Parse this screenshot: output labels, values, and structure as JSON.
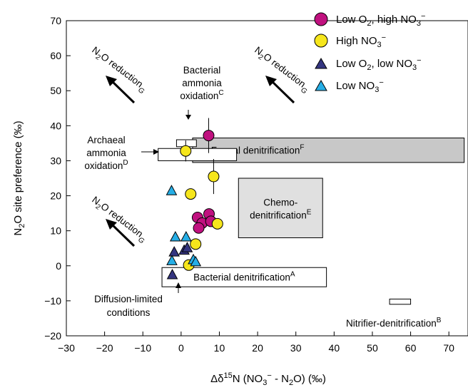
{
  "chart_data": {
    "type": "scatter",
    "xlabel_parts": {
      "pre": "Δδ",
      "sup1": "15",
      "mid": "N (NO",
      "sub1": "3",
      "sup2": "−",
      "post": " - N",
      "sub2": "2",
      "end": "O) (‰)"
    },
    "ylabel_parts": {
      "pre": "N",
      "sub": "2",
      "post": "O site preference (‰)"
    },
    "xlim": [
      -30,
      75
    ],
    "ylim": [
      -20,
      70
    ],
    "xticks": [
      -30,
      -20,
      -10,
      0,
      10,
      20,
      30,
      40,
      50,
      60,
      70
    ],
    "yticks": [
      -20,
      -10,
      0,
      10,
      20,
      30,
      40,
      50,
      60,
      70
    ],
    "xtick_labels": [
      "−30",
      "−20",
      "−10",
      "0",
      "10",
      "20",
      "30",
      "40",
      "50",
      "60",
      "70"
    ],
    "ytick_labels": [
      "−20",
      "−10",
      "0",
      "10",
      "20",
      "30",
      "40",
      "50",
      "60",
      "70"
    ],
    "grid": false,
    "legend_position": "top-right",
    "series": [
      {
        "name": "Low O2, high NO3−",
        "legend": {
          "a": "Low O",
          "b": "2",
          "c": ", high NO",
          "d": "3",
          "e": "−"
        },
        "marker": "circle",
        "color": "#c0117f",
        "points": [
          {
            "x": 7.2,
            "y": 37.2,
            "err": 5
          },
          {
            "x": 4.3,
            "y": 13.8
          },
          {
            "x": 7.3,
            "y": 14.8
          },
          {
            "x": 5.5,
            "y": 12.2
          },
          {
            "x": 4.6,
            "y": 10.8
          },
          {
            "x": 7.8,
            "y": 12.7
          }
        ]
      },
      {
        "name": "High NO3−",
        "legend": {
          "a": "High NO",
          "b": "3",
          "c": "",
          "d": "",
          "e": "−"
        },
        "marker": "circle",
        "color": "#f6e61c",
        "points": [
          {
            "x": 1.2,
            "y": 32.8,
            "err": 3
          },
          {
            "x": 8.5,
            "y": 25.5,
            "err": 5
          },
          {
            "x": 2.5,
            "y": 20.5
          },
          {
            "x": 3.8,
            "y": 6.2
          },
          {
            "x": 9.5,
            "y": 12.0
          },
          {
            "x": 2.0,
            "y": 0.2
          }
        ]
      },
      {
        "name": "Low O2, low NO3−",
        "legend": {
          "a": "Low O",
          "b": "2",
          "c": ", low NO",
          "d": "3",
          "e": "−"
        },
        "marker": "triangle",
        "color": "#343580",
        "points": [
          {
            "x": -1.8,
            "y": 4.0
          },
          {
            "x": 0.8,
            "y": 4.5
          },
          {
            "x": 1.6,
            "y": 5.2
          },
          {
            "x": -2.3,
            "y": -2.5
          }
        ]
      },
      {
        "name": "Low NO3−",
        "legend": {
          "a": "Low NO",
          "b": "3",
          "c": "",
          "d": "",
          "e": "−"
        },
        "marker": "triangle",
        "color": "#26aee6",
        "points": [
          {
            "x": -2.5,
            "y": 21.5
          },
          {
            "x": -1.5,
            "y": 8.3
          },
          {
            "x": 1.3,
            "y": 8.3
          },
          {
            "x": 3.2,
            "y": 1.8
          },
          {
            "x": 3.8,
            "y": 1.2
          },
          {
            "x": -2.4,
            "y": 1.5
          }
        ]
      }
    ],
    "regions": [
      {
        "x1": 3,
        "x2": 74,
        "y1": 29.5,
        "y2": 36.5,
        "fill": "#c8c8c8",
        "label": {
          "main": "Fungal denitrification",
          "sup": "F"
        }
      },
      {
        "x1": 15,
        "x2": 37,
        "y1": 8,
        "y2": 25,
        "fill": "#e0e0e0",
        "label": {
          "main": "Chemo-",
          "line2": "denitrification",
          "sup": "E"
        }
      },
      {
        "x1": -5,
        "x2": 38,
        "y1": -6,
        "y2": -0.5,
        "fill": "#ffffff",
        "label": {
          "main": "Bacterial denitrification",
          "sup": "A"
        }
      },
      {
        "x1": -6,
        "x2": 14.5,
        "y1": 30,
        "y2": 33.5,
        "fill": "#ffffff"
      },
      {
        "x1": -1.2,
        "x2": 4,
        "y1": 34,
        "y2": 36,
        "fill": "#ffffff"
      },
      {
        "x1": 54.5,
        "x2": 60,
        "y1": -11,
        "y2": -9.5,
        "fill": "#ffffff"
      }
    ],
    "annotations": {
      "archaeal": {
        "l1": "Archaeal",
        "l2": "ammonia",
        "l3": "oxidation",
        "sup": "D"
      },
      "bacterial_ammonia": {
        "l1": "Bacterial",
        "l2": "ammonia",
        "l3": "oxidation",
        "sup": "C"
      },
      "diffusion": {
        "l1": "Diffusion-limited",
        "l2": "conditions"
      },
      "nitrifier": {
        "main": "Nitrifier-denitrification",
        "sup": "B"
      },
      "n2o_reduction": {
        "a": "N",
        "b": "2",
        "c": "O reduction",
        "sub": "G"
      }
    }
  }
}
